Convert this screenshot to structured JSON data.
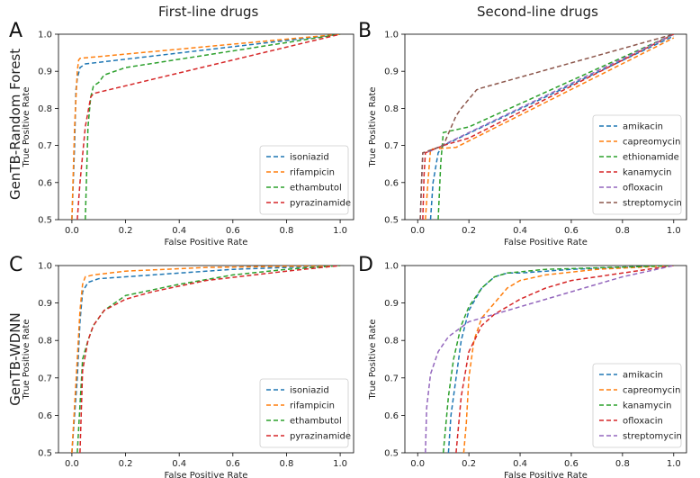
{
  "column_titles": {
    "left": "First-line drugs",
    "right": "Second-line drugs"
  },
  "row_titles": {
    "top": "GenTB-Random Forest",
    "bottom": "GenTB-WDNN"
  },
  "colors": {
    "blue": "#1f77b4",
    "orange": "#ff7f0e",
    "green": "#2ca02c",
    "red": "#d62728",
    "purple": "#9467bd",
    "brown": "#8c564b"
  },
  "chart_data": [
    {
      "panel": "A",
      "type": "line",
      "xlabel": "False Positive Rate",
      "ylabel": "True Positive Rate",
      "xlim": [
        -0.05,
        1.05
      ],
      "ylim": [
        0.5,
        1.0
      ],
      "xticks": [
        "0.0",
        "0.2",
        "0.4",
        "0.6",
        "0.8",
        "1.0"
      ],
      "yticks": [
        "0.5",
        "0.6",
        "0.7",
        "0.8",
        "0.9",
        "1.0"
      ],
      "legend_position": "bottom-right",
      "series": [
        {
          "name": "isoniazid",
          "color": "blue",
          "x": [
            0.0,
            0.01,
            0.015,
            0.02,
            0.03,
            0.05,
            1.0
          ],
          "y": [
            0.5,
            0.7,
            0.85,
            0.88,
            0.91,
            0.92,
            1.0
          ]
        },
        {
          "name": "rifampicin",
          "color": "orange",
          "x": [
            0.0,
            0.01,
            0.02,
            0.025,
            0.03,
            1.0
          ],
          "y": [
            0.5,
            0.75,
            0.9,
            0.93,
            0.935,
            1.0
          ]
        },
        {
          "name": "ethambutol",
          "color": "green",
          "x": [
            0.05,
            0.06,
            0.07,
            0.08,
            0.1,
            0.12,
            0.2,
            1.0
          ],
          "y": [
            0.5,
            0.75,
            0.83,
            0.86,
            0.87,
            0.89,
            0.91,
            1.0
          ]
        },
        {
          "name": "pyrazinamide",
          "color": "red",
          "x": [
            0.02,
            0.03,
            0.05,
            0.07,
            0.08,
            1.0
          ],
          "y": [
            0.5,
            0.6,
            0.75,
            0.83,
            0.84,
            1.0
          ]
        }
      ]
    },
    {
      "panel": "B",
      "type": "line",
      "xlabel": "False Positive Rate",
      "ylabel": "True Positive Rate",
      "xlim": [
        -0.05,
        1.05
      ],
      "ylim": [
        0.5,
        1.0
      ],
      "xticks": [
        "0.0",
        "0.2",
        "0.4",
        "0.6",
        "0.8",
        "1.0"
      ],
      "yticks": [
        "0.5",
        "0.6",
        "0.7",
        "0.8",
        "0.9",
        "1.0"
      ],
      "legend_position": "bottom-right",
      "series": [
        {
          "name": "amikacin",
          "color": "blue",
          "x": [
            0.05,
            0.06,
            0.08,
            0.1,
            1.0
          ],
          "y": [
            0.5,
            0.6,
            0.68,
            0.7,
            0.995
          ]
        },
        {
          "name": "capreomycin",
          "color": "orange",
          "x": [
            0.03,
            0.04,
            0.05,
            0.15,
            1.0
          ],
          "y": [
            0.5,
            0.6,
            0.69,
            0.695,
            0.99
          ]
        },
        {
          "name": "ethionamide",
          "color": "green",
          "x": [
            0.08,
            0.09,
            0.1,
            0.2,
            1.0
          ],
          "y": [
            0.5,
            0.65,
            0.735,
            0.75,
            1.0
          ]
        },
        {
          "name": "kanamycin",
          "color": "red",
          "x": [
            0.02,
            0.025,
            0.03,
            0.1,
            0.2,
            1.0
          ],
          "y": [
            0.5,
            0.62,
            0.68,
            0.7,
            0.72,
            1.0
          ]
        },
        {
          "name": "ofloxacin",
          "color": "purple",
          "x": [
            0.01,
            0.015,
            0.02,
            0.05,
            1.0
          ],
          "y": [
            0.5,
            0.6,
            0.68,
            0.685,
            1.0
          ]
        },
        {
          "name": "streptomycin",
          "color": "brown",
          "x": [
            0.01,
            0.015,
            0.02,
            0.1,
            0.15,
            0.17,
            0.23,
            0.25,
            1.0
          ],
          "y": [
            0.5,
            0.6,
            0.68,
            0.7,
            0.78,
            0.8,
            0.85,
            0.855,
            1.0
          ]
        }
      ]
    },
    {
      "panel": "C",
      "type": "line",
      "xlabel": "False Positive Rate",
      "ylabel": "True Positive Rate",
      "xlim": [
        -0.05,
        1.05
      ],
      "ylim": [
        0.5,
        1.0
      ],
      "xticks": [
        "0.0",
        "0.2",
        "0.4",
        "0.6",
        "0.8",
        "1.0"
      ],
      "yticks": [
        "0.5",
        "0.6",
        "0.7",
        "0.8",
        "0.9",
        "1.0"
      ],
      "legend_position": "bottom-right",
      "series": [
        {
          "name": "isoniazid",
          "color": "blue",
          "x": [
            0.0,
            0.02,
            0.03,
            0.04,
            0.06,
            0.1,
            0.3,
            0.6,
            1.0
          ],
          "y": [
            0.5,
            0.7,
            0.85,
            0.93,
            0.955,
            0.965,
            0.975,
            0.99,
            1.0
          ]
        },
        {
          "name": "rifampicin",
          "color": "orange",
          "x": [
            0.0,
            0.02,
            0.03,
            0.04,
            0.05,
            0.08,
            0.2,
            0.5,
            1.0
          ],
          "y": [
            0.5,
            0.75,
            0.88,
            0.95,
            0.97,
            0.975,
            0.985,
            0.995,
            1.0
          ]
        },
        {
          "name": "ethambutol",
          "color": "green",
          "x": [
            0.02,
            0.04,
            0.06,
            0.08,
            0.12,
            0.2,
            0.4,
            0.6,
            0.8,
            1.0
          ],
          "y": [
            0.5,
            0.75,
            0.8,
            0.84,
            0.88,
            0.92,
            0.95,
            0.975,
            0.99,
            1.0
          ]
        },
        {
          "name": "pyrazinamide",
          "color": "red",
          "x": [
            0.03,
            0.04,
            0.06,
            0.08,
            0.12,
            0.2,
            0.3,
            0.5,
            0.8,
            1.0
          ],
          "y": [
            0.5,
            0.72,
            0.8,
            0.84,
            0.88,
            0.91,
            0.93,
            0.96,
            0.985,
            1.0
          ]
        }
      ]
    },
    {
      "panel": "D",
      "type": "line",
      "xlabel": "False Positive Rate",
      "ylabel": "True Positive Rate",
      "xlim": [
        -0.05,
        1.05
      ],
      "ylim": [
        0.5,
        1.0
      ],
      "xticks": [
        "0.0",
        "0.2",
        "0.4",
        "0.6",
        "0.8",
        "1.0"
      ],
      "yticks": [
        "0.5",
        "0.6",
        "0.7",
        "0.8",
        "0.9",
        "1.0"
      ],
      "legend_position": "bottom-right",
      "series": [
        {
          "name": "amikacin",
          "color": "blue",
          "x": [
            0.12,
            0.13,
            0.15,
            0.17,
            0.2,
            0.25,
            0.3,
            0.35,
            0.4,
            0.6,
            1.0
          ],
          "y": [
            0.5,
            0.6,
            0.7,
            0.8,
            0.88,
            0.94,
            0.97,
            0.98,
            0.98,
            0.99,
            1.0
          ]
        },
        {
          "name": "capreomycin",
          "color": "orange",
          "x": [
            0.18,
            0.19,
            0.2,
            0.22,
            0.25,
            0.3,
            0.35,
            0.4,
            0.5,
            0.7,
            1.0
          ],
          "y": [
            0.5,
            0.58,
            0.7,
            0.8,
            0.86,
            0.9,
            0.94,
            0.96,
            0.975,
            0.99,
            1.0
          ]
        },
        {
          "name": "kanamycin",
          "color": "green",
          "x": [
            0.1,
            0.12,
            0.14,
            0.17,
            0.2,
            0.25,
            0.3,
            0.35,
            0.5,
            1.0
          ],
          "y": [
            0.5,
            0.65,
            0.75,
            0.84,
            0.89,
            0.94,
            0.97,
            0.98,
            0.99,
            1.0
          ]
        },
        {
          "name": "ofloxacin",
          "color": "red",
          "x": [
            0.15,
            0.17,
            0.2,
            0.25,
            0.3,
            0.4,
            0.5,
            0.6,
            0.8,
            1.0
          ],
          "y": [
            0.5,
            0.65,
            0.77,
            0.84,
            0.87,
            0.91,
            0.94,
            0.96,
            0.98,
            1.0
          ]
        },
        {
          "name": "streptomycin",
          "color": "purple",
          "x": [
            0.03,
            0.035,
            0.05,
            0.08,
            0.12,
            0.2,
            0.3,
            0.4,
            0.6,
            0.8,
            1.0
          ],
          "y": [
            0.5,
            0.62,
            0.71,
            0.77,
            0.81,
            0.85,
            0.87,
            0.89,
            0.93,
            0.97,
            1.0
          ]
        }
      ]
    }
  ]
}
